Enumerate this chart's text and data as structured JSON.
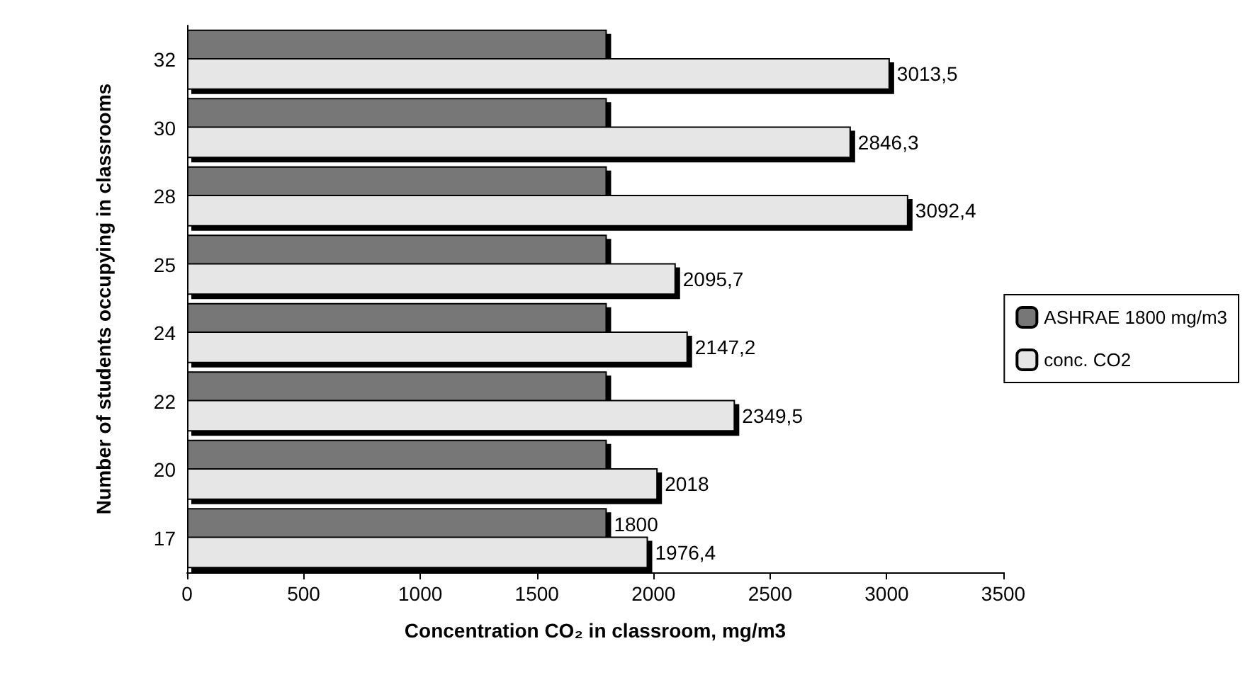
{
  "chart_data": {
    "type": "bar",
    "orientation": "horizontal",
    "categories": [
      "32",
      "30",
      "28",
      "25",
      "24",
      "22",
      "20",
      "17"
    ],
    "series": [
      {
        "name": "ASHRAE 1800 mg/m3",
        "color": "#777777",
        "values": [
          1800,
          1800,
          1800,
          1800,
          1800,
          1800,
          1800,
          1800
        ],
        "value_labels": [
          null,
          null,
          null,
          null,
          null,
          null,
          null,
          "1800"
        ]
      },
      {
        "name": "conc. CO2",
        "color": "#e6e6e6",
        "values": [
          3013.5,
          2846.3,
          3092.4,
          2095.7,
          2147.2,
          2349.5,
          2018,
          1976.4
        ],
        "value_labels": [
          "3013,5",
          "2846,3",
          "3092,4",
          "2095,7",
          "2147,2",
          "2349,5",
          "2018",
          "1976,4"
        ]
      }
    ],
    "xlim": [
      0,
      3500
    ],
    "xticks": [
      0,
      500,
      1000,
      1500,
      2000,
      2500,
      3000,
      3500
    ],
    "xlabel": "Concentration CO₂ in classroom, mg/m3",
    "ylabel": "Number of students occupying in classrooms",
    "grid": false,
    "legend": "right"
  }
}
